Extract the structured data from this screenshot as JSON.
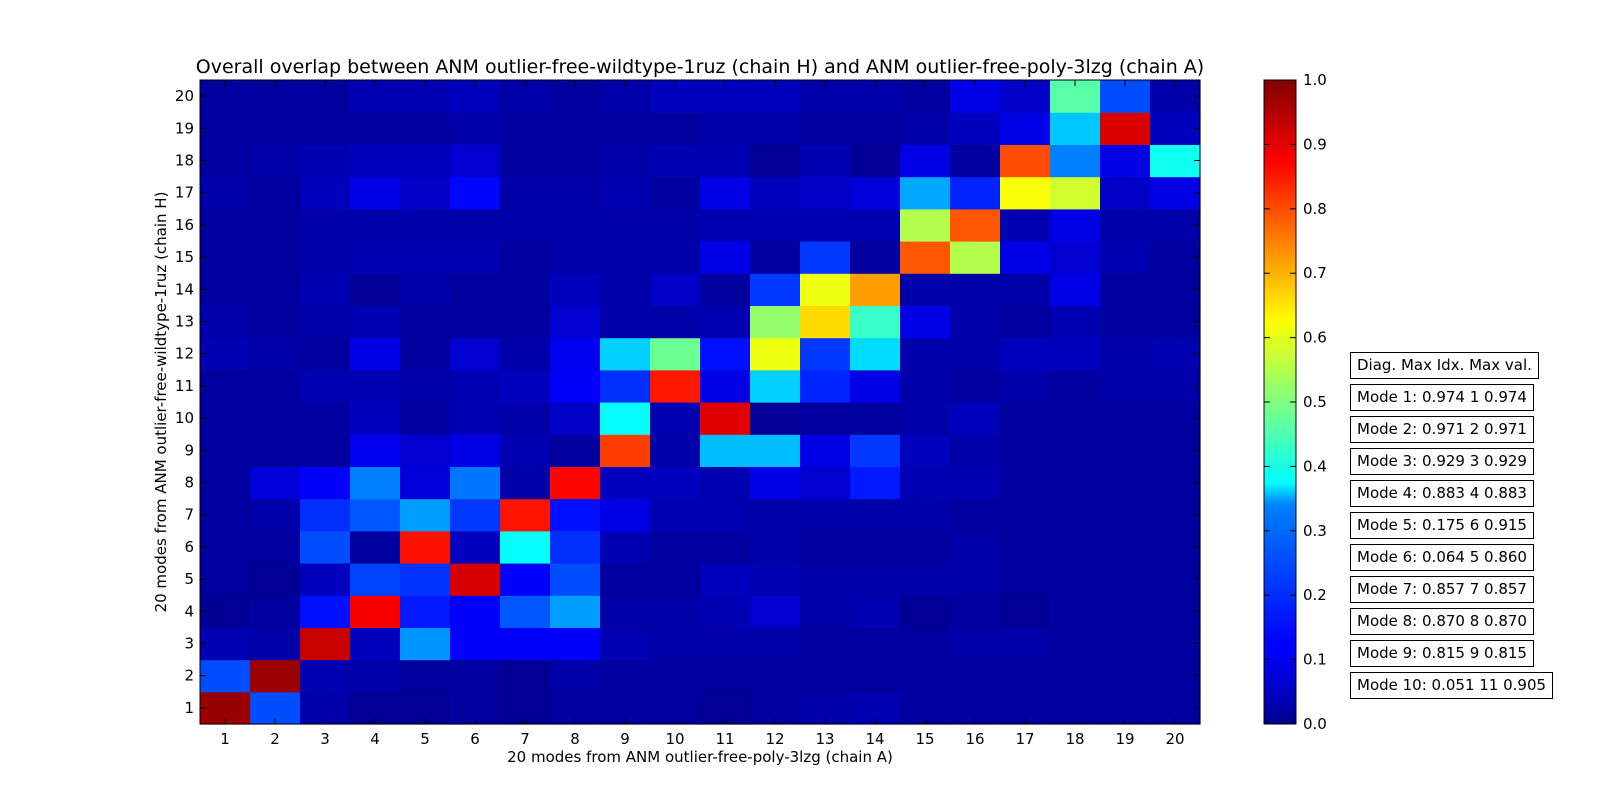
{
  "chart_data": {
    "type": "heatmap",
    "title": "Overall overlap between ANM outlier-free-wildtype-1ruz (chain H) and ANM outlier-free-poly-3lzg (chain A)",
    "xlabel": "20 modes from ANM outlier-free-poly-3lzg (chain A)",
    "ylabel": "20 modes from ANM outlier-free-wildtype-1ruz (chain H)",
    "x_ticks": [
      "1",
      "2",
      "3",
      "4",
      "5",
      "6",
      "7",
      "8",
      "9",
      "10",
      "11",
      "12",
      "13",
      "14",
      "15",
      "16",
      "17",
      "18",
      "19",
      "20"
    ],
    "y_ticks": [
      "1",
      "2",
      "3",
      "4",
      "5",
      "6",
      "7",
      "8",
      "9",
      "10",
      "11",
      "12",
      "13",
      "14",
      "15",
      "16",
      "17",
      "18",
      "19",
      "20"
    ],
    "colormap": "jet",
    "vmin": 0.0,
    "vmax": 1.0,
    "colorbar_ticks": [
      "0.0",
      "0.1",
      "0.2",
      "0.3",
      "0.4",
      "0.5",
      "0.6",
      "0.7",
      "0.8",
      "0.9",
      "1.0"
    ],
    "values": [
      [
        0.974,
        0.2,
        0.04,
        0.02,
        0.02,
        0.03,
        0.02,
        0.03,
        0.03,
        0.03,
        0.02,
        0.03,
        0.04,
        0.05,
        0.03,
        0.03,
        0.03,
        0.03,
        0.03,
        0.03
      ],
      [
        0.2,
        0.971,
        0.05,
        0.04,
        0.03,
        0.03,
        0.02,
        0.04,
        0.03,
        0.03,
        0.03,
        0.03,
        0.03,
        0.03,
        0.03,
        0.03,
        0.03,
        0.03,
        0.03,
        0.03
      ],
      [
        0.05,
        0.04,
        0.929,
        0.06,
        0.27,
        0.12,
        0.12,
        0.12,
        0.05,
        0.04,
        0.04,
        0.04,
        0.03,
        0.03,
        0.03,
        0.04,
        0.04,
        0.03,
        0.03,
        0.03
      ],
      [
        0.02,
        0.03,
        0.14,
        0.883,
        0.15,
        0.12,
        0.21,
        0.28,
        0.04,
        0.04,
        0.05,
        0.08,
        0.04,
        0.05,
        0.02,
        0.03,
        0.02,
        0.03,
        0.03,
        0.03
      ],
      [
        0.03,
        0.02,
        0.06,
        0.19,
        0.175,
        0.915,
        0.12,
        0.2,
        0.03,
        0.03,
        0.06,
        0.05,
        0.04,
        0.04,
        0.04,
        0.04,
        0.03,
        0.03,
        0.03,
        0.03
      ],
      [
        0.03,
        0.03,
        0.2,
        0.03,
        0.86,
        0.064,
        0.38,
        0.17,
        0.05,
        0.03,
        0.03,
        0.04,
        0.03,
        0.03,
        0.03,
        0.04,
        0.03,
        0.03,
        0.03,
        0.03
      ],
      [
        0.03,
        0.04,
        0.17,
        0.21,
        0.28,
        0.18,
        0.857,
        0.14,
        0.1,
        0.05,
        0.05,
        0.04,
        0.04,
        0.04,
        0.04,
        0.03,
        0.03,
        0.03,
        0.03,
        0.03
      ],
      [
        0.03,
        0.09,
        0.12,
        0.25,
        0.09,
        0.24,
        0.04,
        0.87,
        0.06,
        0.06,
        0.05,
        0.1,
        0.08,
        0.15,
        0.05,
        0.05,
        0.03,
        0.03,
        0.03,
        0.03
      ],
      [
        0.03,
        0.03,
        0.03,
        0.11,
        0.08,
        0.1,
        0.05,
        0.03,
        0.815,
        0.04,
        0.31,
        0.31,
        0.1,
        0.18,
        0.06,
        0.04,
        0.03,
        0.03,
        0.03,
        0.03
      ],
      [
        0.03,
        0.03,
        0.03,
        0.06,
        0.03,
        0.05,
        0.04,
        0.07,
        0.38,
        0.05,
        0.905,
        0.02,
        0.03,
        0.03,
        0.04,
        0.06,
        0.03,
        0.03,
        0.03,
        0.03
      ],
      [
        0.03,
        0.03,
        0.05,
        0.05,
        0.04,
        0.05,
        0.06,
        0.12,
        0.17,
        0.851,
        0.1,
        0.33,
        0.16,
        0.1,
        0.04,
        0.03,
        0.04,
        0.03,
        0.04,
        0.04
      ],
      [
        0.05,
        0.04,
        0.03,
        0.1,
        0.03,
        0.08,
        0.04,
        0.11,
        0.33,
        0.48,
        0.14,
        0.61,
        0.18,
        0.34,
        0.04,
        0.04,
        0.06,
        0.06,
        0.04,
        0.05
      ],
      [
        0.04,
        0.03,
        0.04,
        0.05,
        0.03,
        0.03,
        0.03,
        0.08,
        0.04,
        0.04,
        0.05,
        0.52,
        0.66,
        0.43,
        0.1,
        0.04,
        0.03,
        0.05,
        0.03,
        0.03
      ],
      [
        0.03,
        0.03,
        0.05,
        0.02,
        0.04,
        0.03,
        0.03,
        0.06,
        0.04,
        0.07,
        0.03,
        0.18,
        0.61,
        0.72,
        0.04,
        0.04,
        0.04,
        0.1,
        0.03,
        0.03
      ],
      [
        0.03,
        0.03,
        0.04,
        0.05,
        0.05,
        0.05,
        0.03,
        0.04,
        0.04,
        0.04,
        0.1,
        0.03,
        0.18,
        0.03,
        0.79,
        0.55,
        0.1,
        0.08,
        0.05,
        0.03
      ],
      [
        0.03,
        0.03,
        0.04,
        0.04,
        0.04,
        0.04,
        0.04,
        0.04,
        0.04,
        0.04,
        0.05,
        0.05,
        0.05,
        0.05,
        0.55,
        0.79,
        0.05,
        0.1,
        0.04,
        0.04
      ],
      [
        0.04,
        0.03,
        0.06,
        0.1,
        0.07,
        0.13,
        0.04,
        0.04,
        0.05,
        0.03,
        0.1,
        0.06,
        0.07,
        0.09,
        0.29,
        0.16,
        0.62,
        0.58,
        0.07,
        0.1
      ],
      [
        0.03,
        0.04,
        0.05,
        0.06,
        0.06,
        0.08,
        0.03,
        0.03,
        0.04,
        0.05,
        0.05,
        0.02,
        0.05,
        0.02,
        0.1,
        0.03,
        0.8,
        0.25,
        0.1,
        0.39
      ],
      [
        0.03,
        0.03,
        0.03,
        0.03,
        0.03,
        0.04,
        0.03,
        0.03,
        0.03,
        0.03,
        0.04,
        0.04,
        0.03,
        0.03,
        0.04,
        0.06,
        0.1,
        0.32,
        0.911,
        0.06
      ],
      [
        0.03,
        0.03,
        0.03,
        0.05,
        0.05,
        0.06,
        0.04,
        0.03,
        0.04,
        0.06,
        0.06,
        0.06,
        0.04,
        0.04,
        0.03,
        0.1,
        0.07,
        0.46,
        0.2,
        0.04
      ]
    ],
    "legend_entries": [
      "Diag. Max Idx. Max val.",
      "Mode 1: 0.974 1 0.974",
      "Mode 2: 0.971 2 0.971",
      "Mode 3: 0.929 3 0.929",
      "Mode 4: 0.883 4 0.883",
      "Mode 5: 0.175 6 0.915",
      "Mode 6: 0.064 5 0.860",
      "Mode 7: 0.857 7 0.857",
      "Mode 8: 0.870 8 0.870",
      "Mode 9: 0.815 9 0.815",
      "Mode 10: 0.051 11 0.905"
    ],
    "legend_position": "right"
  }
}
